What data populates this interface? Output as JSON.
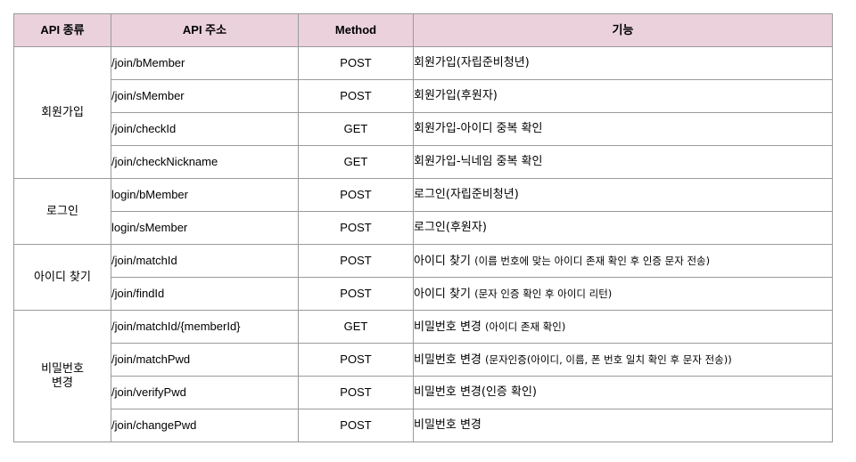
{
  "headers": {
    "type": "API 종류",
    "address": "API 주소",
    "method": "Method",
    "function": "기능"
  },
  "groups": [
    {
      "name": "회원가입",
      "rows": [
        {
          "address": "/join/bMember",
          "method": "POST",
          "func_main": "회원가입(자립준비청년)",
          "func_note": ""
        },
        {
          "address": "/join/sMember",
          "method": "POST",
          "func_main": "회원가입(후원자)",
          "func_note": ""
        },
        {
          "address": "/join/checkId",
          "method": "GET",
          "func_main": "회원가입-아이디 중복 확인",
          "func_note": ""
        },
        {
          "address": "/join/checkNickname",
          "method": "GET",
          "func_main": "회원가입-닉네임 중복 확인",
          "func_note": ""
        }
      ]
    },
    {
      "name": "로그인",
      "rows": [
        {
          "address": "login/bMember",
          "method": "POST",
          "func_main": "로그인(자립준비청년)",
          "func_note": ""
        },
        {
          "address": "login/sMember",
          "method": "POST",
          "func_main": "로그인(후원자)",
          "func_note": ""
        }
      ]
    },
    {
      "name": "아이디 찾기",
      "rows": [
        {
          "address": "/join/matchId",
          "method": "POST",
          "func_main": "아이디 찾기 ",
          "func_note": "(이름 번호에 맞는 아이디 존재 확인 후 인증 문자 전송)"
        },
        {
          "address": "/join/findId",
          "method": "POST",
          "func_main": "아이디 찾기 ",
          "func_note": "(문자 인증 확인 후 아이디 리턴)"
        }
      ]
    },
    {
      "name": "비밀번호 변경",
      "rows": [
        {
          "address": "/join/matchId/{memberId}",
          "method": "GET",
          "func_main": "비밀번호 변경 ",
          "func_note": "(아이디 존재 확인)"
        },
        {
          "address": "/join/matchPwd",
          "method": "POST",
          "func_main": "비밀번호 변경 ",
          "func_note": "(문자인증(아이디, 이름, 폰 번호 일치 확인 후 문자 전송))"
        },
        {
          "address": "/join/verifyPwd",
          "method": "POST",
          "func_main": "비밀번호 변경(인증 확인)",
          "func_note": ""
        },
        {
          "address": "/join/changePwd",
          "method": "POST",
          "func_main": "비밀번호 변경",
          "func_note": ""
        }
      ]
    }
  ]
}
